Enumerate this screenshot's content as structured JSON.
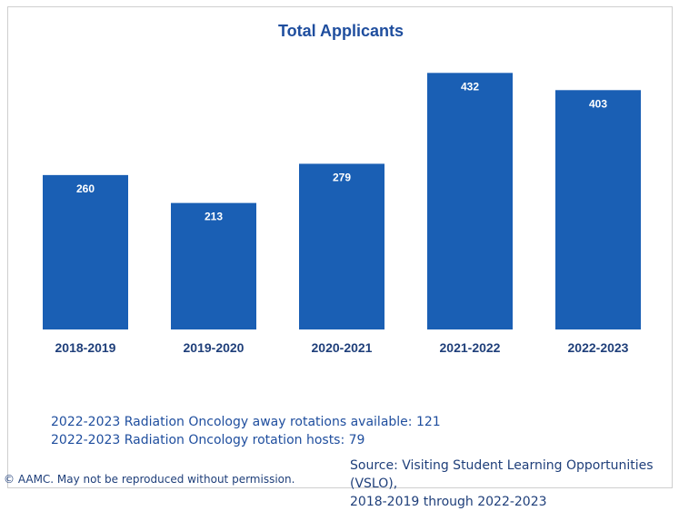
{
  "chart_data": {
    "type": "bar",
    "title": "Total Applicants",
    "categories": [
      "2018-2019",
      "2019-2020",
      "2020-2021",
      "2021-2022",
      "2022-2023"
    ],
    "values": [
      260,
      213,
      279,
      432,
      403
    ],
    "xlabel": "",
    "ylabel": "",
    "ylim": [
      0,
      460
    ],
    "grid": false,
    "data_labels": true,
    "bar_color": "#1a5fb4"
  },
  "notes": {
    "line1": "2022-2023 Radiation Oncology away rotations available: 121",
    "line2": "2022-2023 Radiation Oncology rotation hosts: 79"
  },
  "footer": {
    "copyright": "© AAMC. May not be reproduced without permission.",
    "source_line1": "Source: Visiting Student Learning Opportunities (VSLO),",
    "source_line2": "2018-2019 through 2022-2023"
  },
  "colors": {
    "title": "#1f4e9e",
    "axis_text": "#1f3f7a",
    "bar": "#1a5fb4",
    "data_label": "#ffffff"
  }
}
